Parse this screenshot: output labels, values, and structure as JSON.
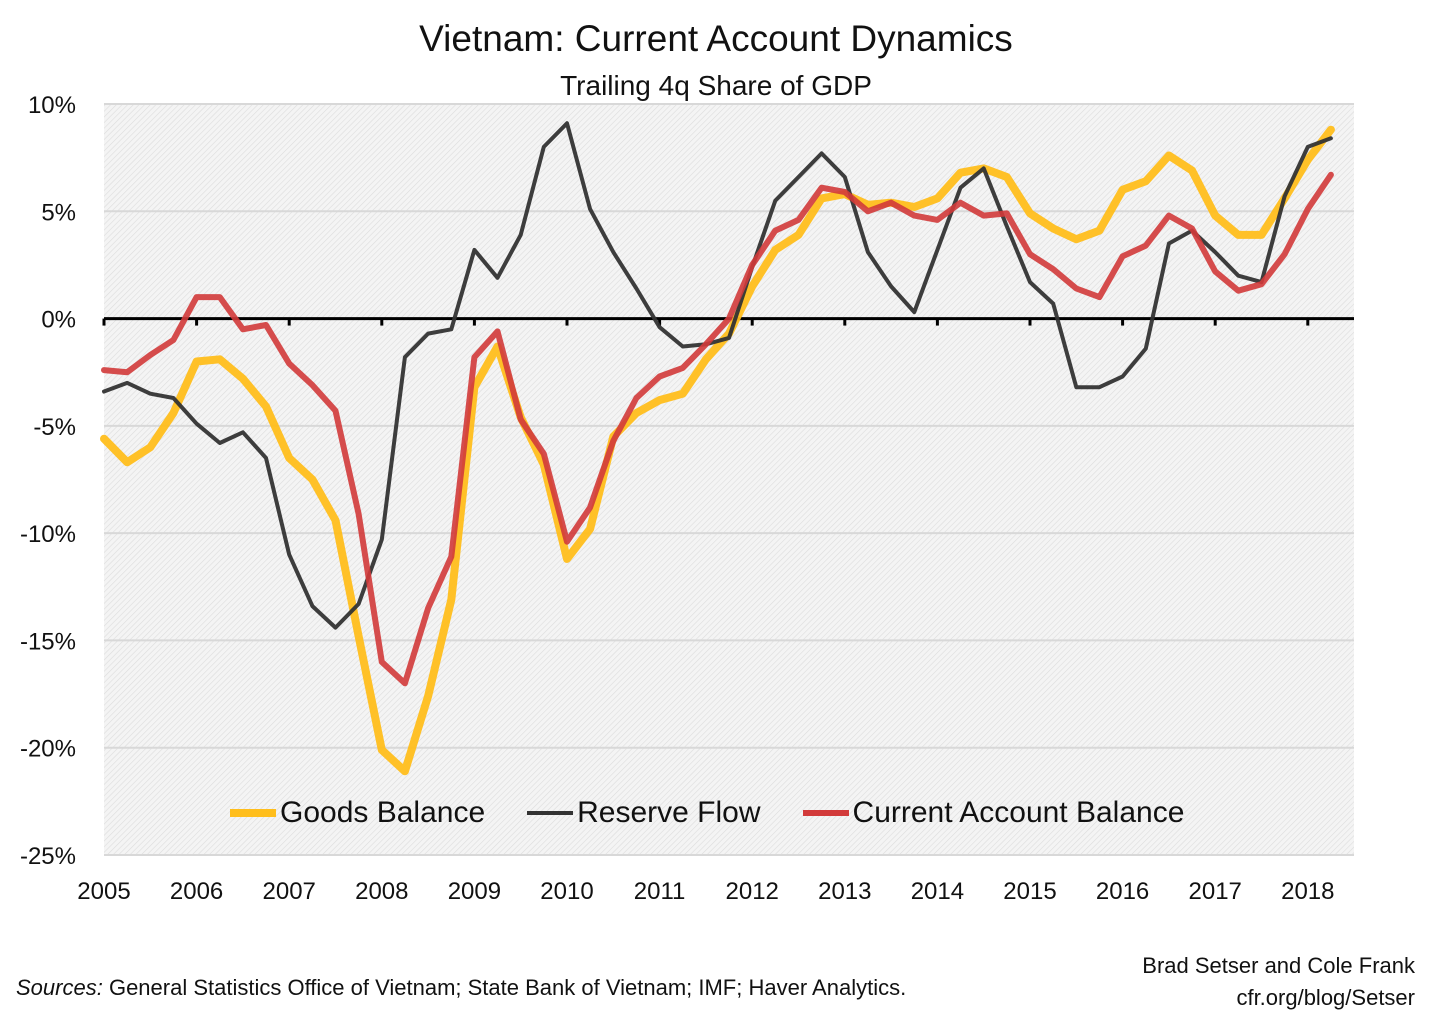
{
  "title": "Vietnam: Current Account Dynamics",
  "subtitle": "Trailing 4q Share of GDP",
  "sources_label": "Sources:",
  "sources_text": "General Statistics Office of Vietnam; State Bank of Vietnam; IMF; Haver Analytics.",
  "credit_line1": "Brad Setser and Cole Frank",
  "credit_line2": "cfr.org/blog/Setser",
  "chart_data": {
    "type": "line",
    "title": "Vietnam: Current Account Dynamics",
    "subtitle": "Trailing 4q Share of GDP",
    "xlabel": "",
    "ylabel": "",
    "ylim": [
      -25,
      10
    ],
    "yticks": [
      10,
      5,
      0,
      -5,
      -10,
      -15,
      -20,
      -25
    ],
    "ytick_labels": [
      "10%",
      "5%",
      "0%",
      "-5%",
      "-10%",
      "-15%",
      "-20%",
      "-25%"
    ],
    "xtick_labels": [
      "2005",
      "2006",
      "2007",
      "2008",
      "2009",
      "2010",
      "2011",
      "2012",
      "2013",
      "2014",
      "2015",
      "2016",
      "2017",
      "2018"
    ],
    "x_start": "2005Q1",
    "x_frequency": "quarterly",
    "grid": true,
    "legend_position": "bottom",
    "series": [
      {
        "name": "Goods Balance",
        "color": "#FFBE1C",
        "values": [
          -5.6,
          -6.7,
          -6.0,
          -4.4,
          -2.0,
          -1.9,
          -2.8,
          -4.1,
          -6.5,
          -7.5,
          -9.4,
          -14.8,
          -20.1,
          -21.1,
          -17.6,
          -13.1,
          -3.2,
          -1.3,
          -4.6,
          -6.8,
          -11.2,
          -9.8,
          -5.5,
          -4.4,
          -3.8,
          -3.5,
          -1.9,
          -0.7,
          1.5,
          3.2,
          3.9,
          5.6,
          5.8,
          5.3,
          5.4,
          5.2,
          5.6,
          6.8,
          7.0,
          6.6,
          4.9,
          4.2,
          3.7,
          4.1,
          6.0,
          6.4,
          7.6,
          6.9,
          4.8,
          3.9,
          3.9,
          5.6,
          7.4,
          8.8
        ]
      },
      {
        "name": "Reserve Flow",
        "color": "#333333",
        "values": [
          -3.4,
          -3.0,
          -3.5,
          -3.7,
          -4.9,
          -5.8,
          -5.3,
          -6.5,
          -11.0,
          -13.4,
          -14.4,
          -13.3,
          -10.3,
          -1.8,
          -0.7,
          -0.5,
          3.2,
          1.9,
          3.9,
          8.0,
          9.1,
          5.1,
          3.1,
          1.4,
          -0.4,
          -1.3,
          -1.2,
          -0.9,
          2.4,
          5.5,
          6.6,
          7.7,
          6.6,
          3.1,
          1.5,
          0.3,
          3.2,
          6.1,
          7.0,
          4.3,
          1.7,
          0.7,
          -3.2,
          -3.2,
          -2.7,
          -1.4,
          3.5,
          4.1,
          3.1,
          2.0,
          1.7,
          5.7,
          8.0,
          8.4
        ]
      },
      {
        "name": "Current Account Balance",
        "color": "#D23A3A",
        "values": [
          -2.4,
          -2.5,
          -1.7,
          -1.0,
          1.0,
          1.0,
          -0.5,
          -0.3,
          -2.1,
          -3.1,
          -4.3,
          -9.1,
          -16.0,
          -17.0,
          -13.5,
          -11.1,
          -1.8,
          -0.6,
          -4.7,
          -6.3,
          -10.4,
          -8.8,
          -5.7,
          -3.7,
          -2.7,
          -2.3,
          -1.2,
          0.0,
          2.5,
          4.1,
          4.6,
          6.1,
          5.9,
          5.0,
          5.4,
          4.8,
          4.6,
          5.4,
          4.8,
          4.9,
          3.0,
          2.3,
          1.4,
          1.0,
          2.9,
          3.4,
          4.8,
          4.2,
          2.2,
          1.3,
          1.6,
          3.0,
          5.1,
          6.7
        ]
      }
    ]
  }
}
